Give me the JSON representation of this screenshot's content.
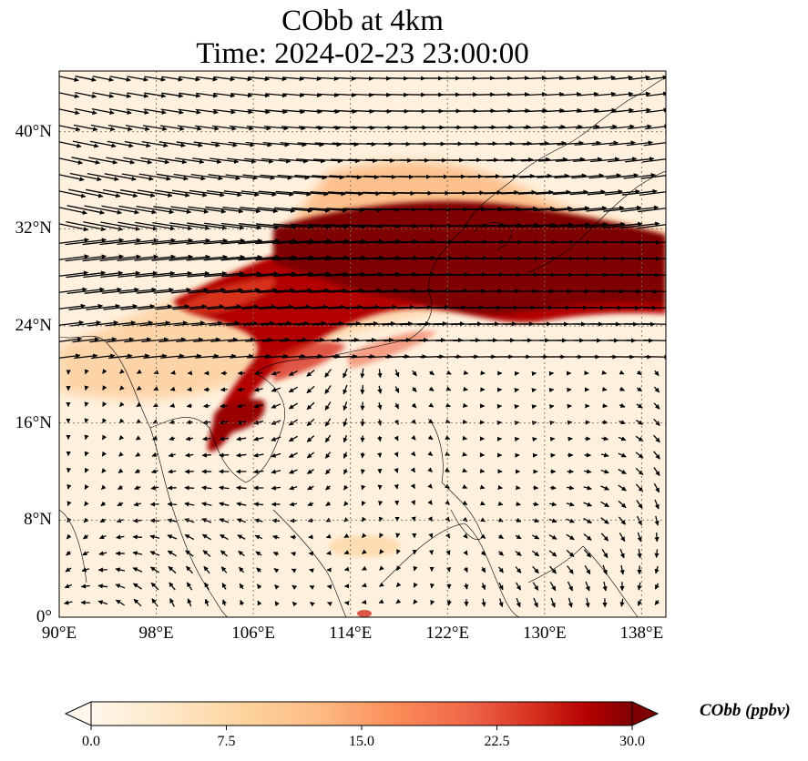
{
  "title": {
    "line1": "CObb at 4km",
    "line2": "Time: 2024-02-23 23:00:00"
  },
  "map": {
    "lon_range": [
      90,
      140
    ],
    "lat_range": [
      0,
      45
    ],
    "x_ticks": [
      "90°E",
      "98°E",
      "106°E",
      "114°E",
      "122°E",
      "130°E",
      "138°E"
    ],
    "x_tick_values": [
      90,
      98,
      106,
      114,
      122,
      130,
      138
    ],
    "y_ticks": [
      "40°N",
      "32°N",
      "24°N",
      "16°N",
      "8°N",
      "0°"
    ],
    "y_tick_values": [
      40,
      32,
      24,
      16,
      8,
      0
    ],
    "gridlines": true,
    "field": "CObb",
    "vectors": "wind"
  },
  "colorbar": {
    "label": "CObb (ppbv)",
    "ticks": [
      "0.0",
      "7.5",
      "15.0",
      "22.5",
      "30.0"
    ],
    "tick_values": [
      0,
      7.5,
      15,
      22.5,
      30
    ],
    "range": [
      0,
      30
    ],
    "extend": "both",
    "colormap": "OrRd",
    "colors": [
      "#fff7ec",
      "#fee8c8",
      "#fdd49e",
      "#fdbb84",
      "#fc8d59",
      "#ef6548",
      "#d7301f",
      "#b30000",
      "#7f0000"
    ]
  }
}
